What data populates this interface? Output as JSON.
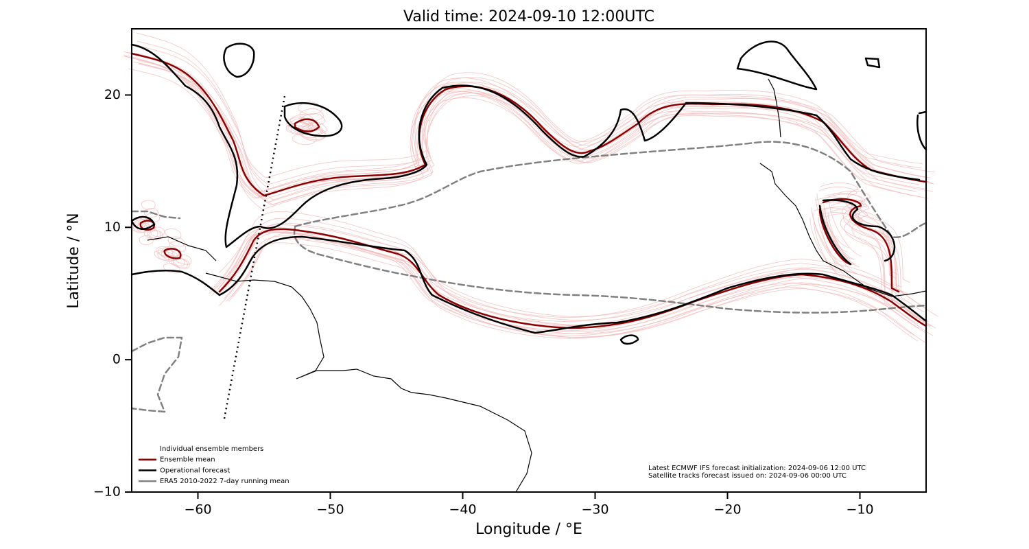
{
  "chart_data": {
    "type": "map",
    "title": "Valid time: 2024-09-10 12:00UTC",
    "x_label": "Longitude / °E",
    "y_label": "Latitude / °N",
    "xlim": [
      -65,
      -5
    ],
    "ylim": [
      -10,
      25
    ],
    "xticks": [
      {
        "value": -60,
        "label": "−60"
      },
      {
        "value": -50,
        "label": "−50"
      },
      {
        "value": -40,
        "label": "−40"
      },
      {
        "value": -30,
        "label": "−30"
      },
      {
        "value": -20,
        "label": "−20"
      },
      {
        "value": -10,
        "label": "−10"
      }
    ],
    "yticks": [
      {
        "value": -10,
        "label": "−10"
      },
      0,
      10,
      20
    ],
    "legend": [
      {
        "name": "Individual ensemble members",
        "color": "#f2b8b8",
        "dash": "solid"
      },
      {
        "name": "Ensemble mean",
        "color": "#8b0000",
        "dash": "solid"
      },
      {
        "name": "Operational forecast",
        "color": "#000000",
        "dash": "solid"
      },
      {
        "name": "ERA5 2010-2022 7-day running mean",
        "color": "#808080",
        "dash": "solid"
      }
    ],
    "legend_position": "lower left",
    "annotations": [
      "Latest ECMWF IFS forecast initialization: 2024-09-06 12:00 UTC",
      "Satellite tracks forecast issued on: 2024-09-06 00:00 UTC"
    ]
  }
}
